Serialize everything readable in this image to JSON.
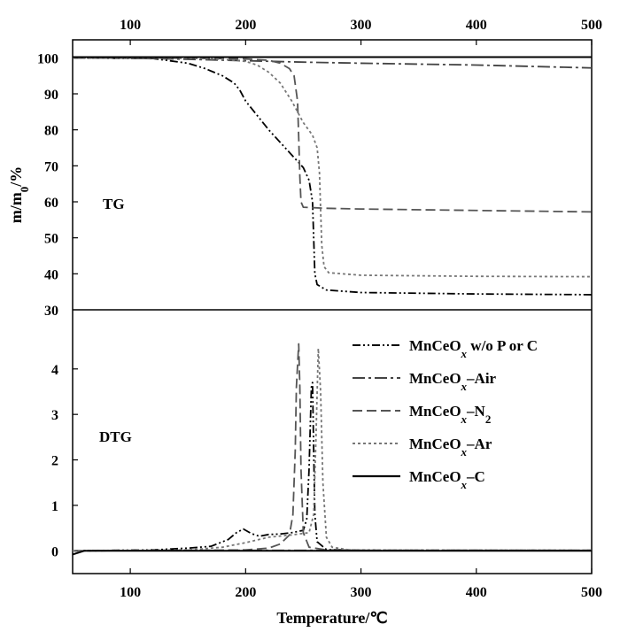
{
  "chart_data": [
    {
      "type": "line",
      "panel_label": "TG",
      "ylabel": "m/m₀/%",
      "xlim": [
        50,
        500
      ],
      "ylim": [
        30,
        105
      ],
      "xticks": [
        100,
        200,
        300,
        400,
        500
      ],
      "yticks": [
        30,
        40,
        50,
        60,
        70,
        80,
        90,
        100
      ],
      "x_axis_position": "top",
      "grid": false,
      "series": [
        {
          "name": "MnCeOx w/o P or C",
          "color": "#000000",
          "dash": "dashdotdot",
          "points": [
            [
              50,
              100
            ],
            [
              120,
              99.8
            ],
            [
              150,
              98.5
            ],
            [
              165,
              97
            ],
            [
              180,
              95
            ],
            [
              190,
              93
            ],
            [
              195,
              91
            ],
            [
              200,
              88
            ],
            [
              210,
              84
            ],
            [
              220,
              80
            ],
            [
              230,
              76.5
            ],
            [
              240,
              73
            ],
            [
              250,
              69.5
            ],
            [
              255,
              66
            ],
            [
              258,
              60
            ],
            [
              259,
              50
            ],
            [
              260,
              40
            ],
            [
              262,
              37
            ],
            [
              270,
              35.5
            ],
            [
              300,
              34.8
            ],
            [
              400,
              34.4
            ],
            [
              500,
              34.2
            ]
          ]
        },
        {
          "name": "MnCeOx–Air",
          "color": "#444444",
          "dash": "dashdot",
          "points": [
            [
              50,
              100
            ],
            [
              100,
              99.9
            ],
            [
              150,
              99.6
            ],
            [
              200,
              99.2
            ],
            [
              250,
              98.8
            ],
            [
              300,
              98.5
            ],
            [
              400,
              98
            ],
            [
              500,
              97.2
            ]
          ]
        },
        {
          "name": "MnCeOx–N₂",
          "color": "#555555",
          "dash": "dashed",
          "points": [
            [
              50,
              100
            ],
            [
              150,
              99.9
            ],
            [
              200,
              99.7
            ],
            [
              220,
              99.3
            ],
            [
              230,
              98.5
            ],
            [
              238,
              97
            ],
            [
              242,
              95
            ],
            [
              245,
              88
            ],
            [
              246,
              78
            ],
            [
              247,
              67
            ],
            [
              248,
              60
            ],
            [
              250,
              58.5
            ],
            [
              270,
              58.2
            ],
            [
              300,
              58
            ],
            [
              400,
              57.6
            ],
            [
              500,
              57.2
            ]
          ]
        },
        {
          "name": "MnCeOx–Ar",
          "color": "#777777",
          "dash": "dotted",
          "points": [
            [
              50,
              100
            ],
            [
              150,
              99.9
            ],
            [
              180,
              99.6
            ],
            [
              200,
              99
            ],
            [
              210,
              98
            ],
            [
              220,
              96
            ],
            [
              230,
              93
            ],
            [
              240,
              88
            ],
            [
              250,
              82
            ],
            [
              258,
              78.5
            ],
            [
              262,
              75
            ],
            [
              264,
              68
            ],
            [
              265,
              58
            ],
            [
              266,
              48
            ],
            [
              268,
              42
            ],
            [
              272,
              40.3
            ],
            [
              300,
              39.6
            ],
            [
              400,
              39.3
            ],
            [
              500,
              39.2
            ]
          ]
        },
        {
          "name": "MnCeOx–C",
          "color": "#000000",
          "dash": "solid",
          "points": [
            [
              50,
              100.2
            ],
            [
              500,
              100.2
            ]
          ]
        }
      ]
    },
    {
      "type": "line",
      "panel_label": "DTG",
      "xlabel": "Temperature/℃",
      "xlim": [
        50,
        500
      ],
      "ylim": [
        -0.5,
        5.3
      ],
      "xticks": [
        100,
        200,
        300,
        400,
        500
      ],
      "yticks": [
        0,
        1,
        2,
        3,
        4
      ],
      "grid": false,
      "legend": "top-right",
      "series": [
        {
          "name": "MnCeOx w/o P or C",
          "color": "#000000",
          "dash": "dashdotdot",
          "points": [
            [
              50,
              0
            ],
            [
              120,
              0.02
            ],
            [
              150,
              0.06
            ],
            [
              170,
              0.1
            ],
            [
              185,
              0.25
            ],
            [
              192,
              0.4
            ],
            [
              198,
              0.48
            ],
            [
              205,
              0.38
            ],
            [
              212,
              0.32
            ],
            [
              220,
              0.36
            ],
            [
              230,
              0.37
            ],
            [
              240,
              0.4
            ],
            [
              250,
              0.45
            ],
            [
              253,
              0.7
            ],
            [
              255,
              1.8
            ],
            [
              257,
              3.6
            ],
            [
              258,
              3.7
            ],
            [
              259,
              2.2
            ],
            [
              260,
              0.8
            ],
            [
              262,
              0.2
            ],
            [
              270,
              0.03
            ],
            [
              300,
              0.01
            ],
            [
              500,
              0.01
            ]
          ]
        },
        {
          "name": "MnCeOx–Air",
          "color": "#444444",
          "dash": "dashdot",
          "points": [
            [
              50,
              0
            ],
            [
              150,
              0.01
            ],
            [
              250,
              0.01
            ],
            [
              500,
              0.01
            ]
          ]
        },
        {
          "name": "MnCeOx–N₂",
          "color": "#555555",
          "dash": "dashed",
          "points": [
            [
              50,
              0
            ],
            [
              150,
              0.01
            ],
            [
              200,
              0.02
            ],
            [
              220,
              0.06
            ],
            [
              230,
              0.15
            ],
            [
              238,
              0.35
            ],
            [
              241,
              0.8
            ],
            [
              243,
              2.2
            ],
            [
              244,
              3.6
            ],
            [
              246,
              4.55
            ],
            [
              247,
              3.6
            ],
            [
              248,
              1.8
            ],
            [
              250,
              0.4
            ],
            [
              255,
              0.08
            ],
            [
              270,
              0.02
            ],
            [
              300,
              0.01
            ],
            [
              500,
              0.01
            ]
          ]
        },
        {
          "name": "MnCeOx–Ar",
          "color": "#777777",
          "dash": "dotted",
          "points": [
            [
              50,
              0
            ],
            [
              150,
              0.02
            ],
            [
              180,
              0.08
            ],
            [
              200,
              0.18
            ],
            [
              220,
              0.3
            ],
            [
              240,
              0.35
            ],
            [
              255,
              0.4
            ],
            [
              259,
              0.8
            ],
            [
              261,
              2.5
            ],
            [
              263,
              4.45
            ],
            [
              265,
              3.5
            ],
            [
              267,
              1.5
            ],
            [
              270,
              0.3
            ],
            [
              275,
              0.08
            ],
            [
              290,
              0.02
            ],
            [
              500,
              0.01
            ]
          ]
        },
        {
          "name": "MnCeOx–C",
          "color": "#000000",
          "dash": "solid",
          "points": [
            [
              50,
              -0.08
            ],
            [
              60,
              0
            ],
            [
              500,
              0
            ]
          ]
        }
      ]
    }
  ],
  "legend_labels": [
    {
      "base": "MnCeO",
      "sub": "x",
      "italic_sub": true,
      "suffix": " w/o P or C",
      "sub2": ""
    },
    {
      "base": "MnCeO",
      "sub": "x",
      "italic_sub": true,
      "suffix": "–Air",
      "sub2": ""
    },
    {
      "base": "MnCeO",
      "sub": "x",
      "italic_sub": true,
      "suffix": "–N",
      "sub2": "2"
    },
    {
      "base": "MnCeO",
      "sub": "x",
      "italic_sub": true,
      "suffix": "–Ar",
      "sub2": ""
    },
    {
      "base": "MnCeO",
      "sub": "x",
      "italic_sub": true,
      "suffix": "–C",
      "sub2": ""
    }
  ],
  "axis": {
    "xlabel": "Temperature/℃",
    "ylabel_main": "m/m",
    "ylabel_sub": "0",
    "ylabel_suffix": "/%"
  }
}
